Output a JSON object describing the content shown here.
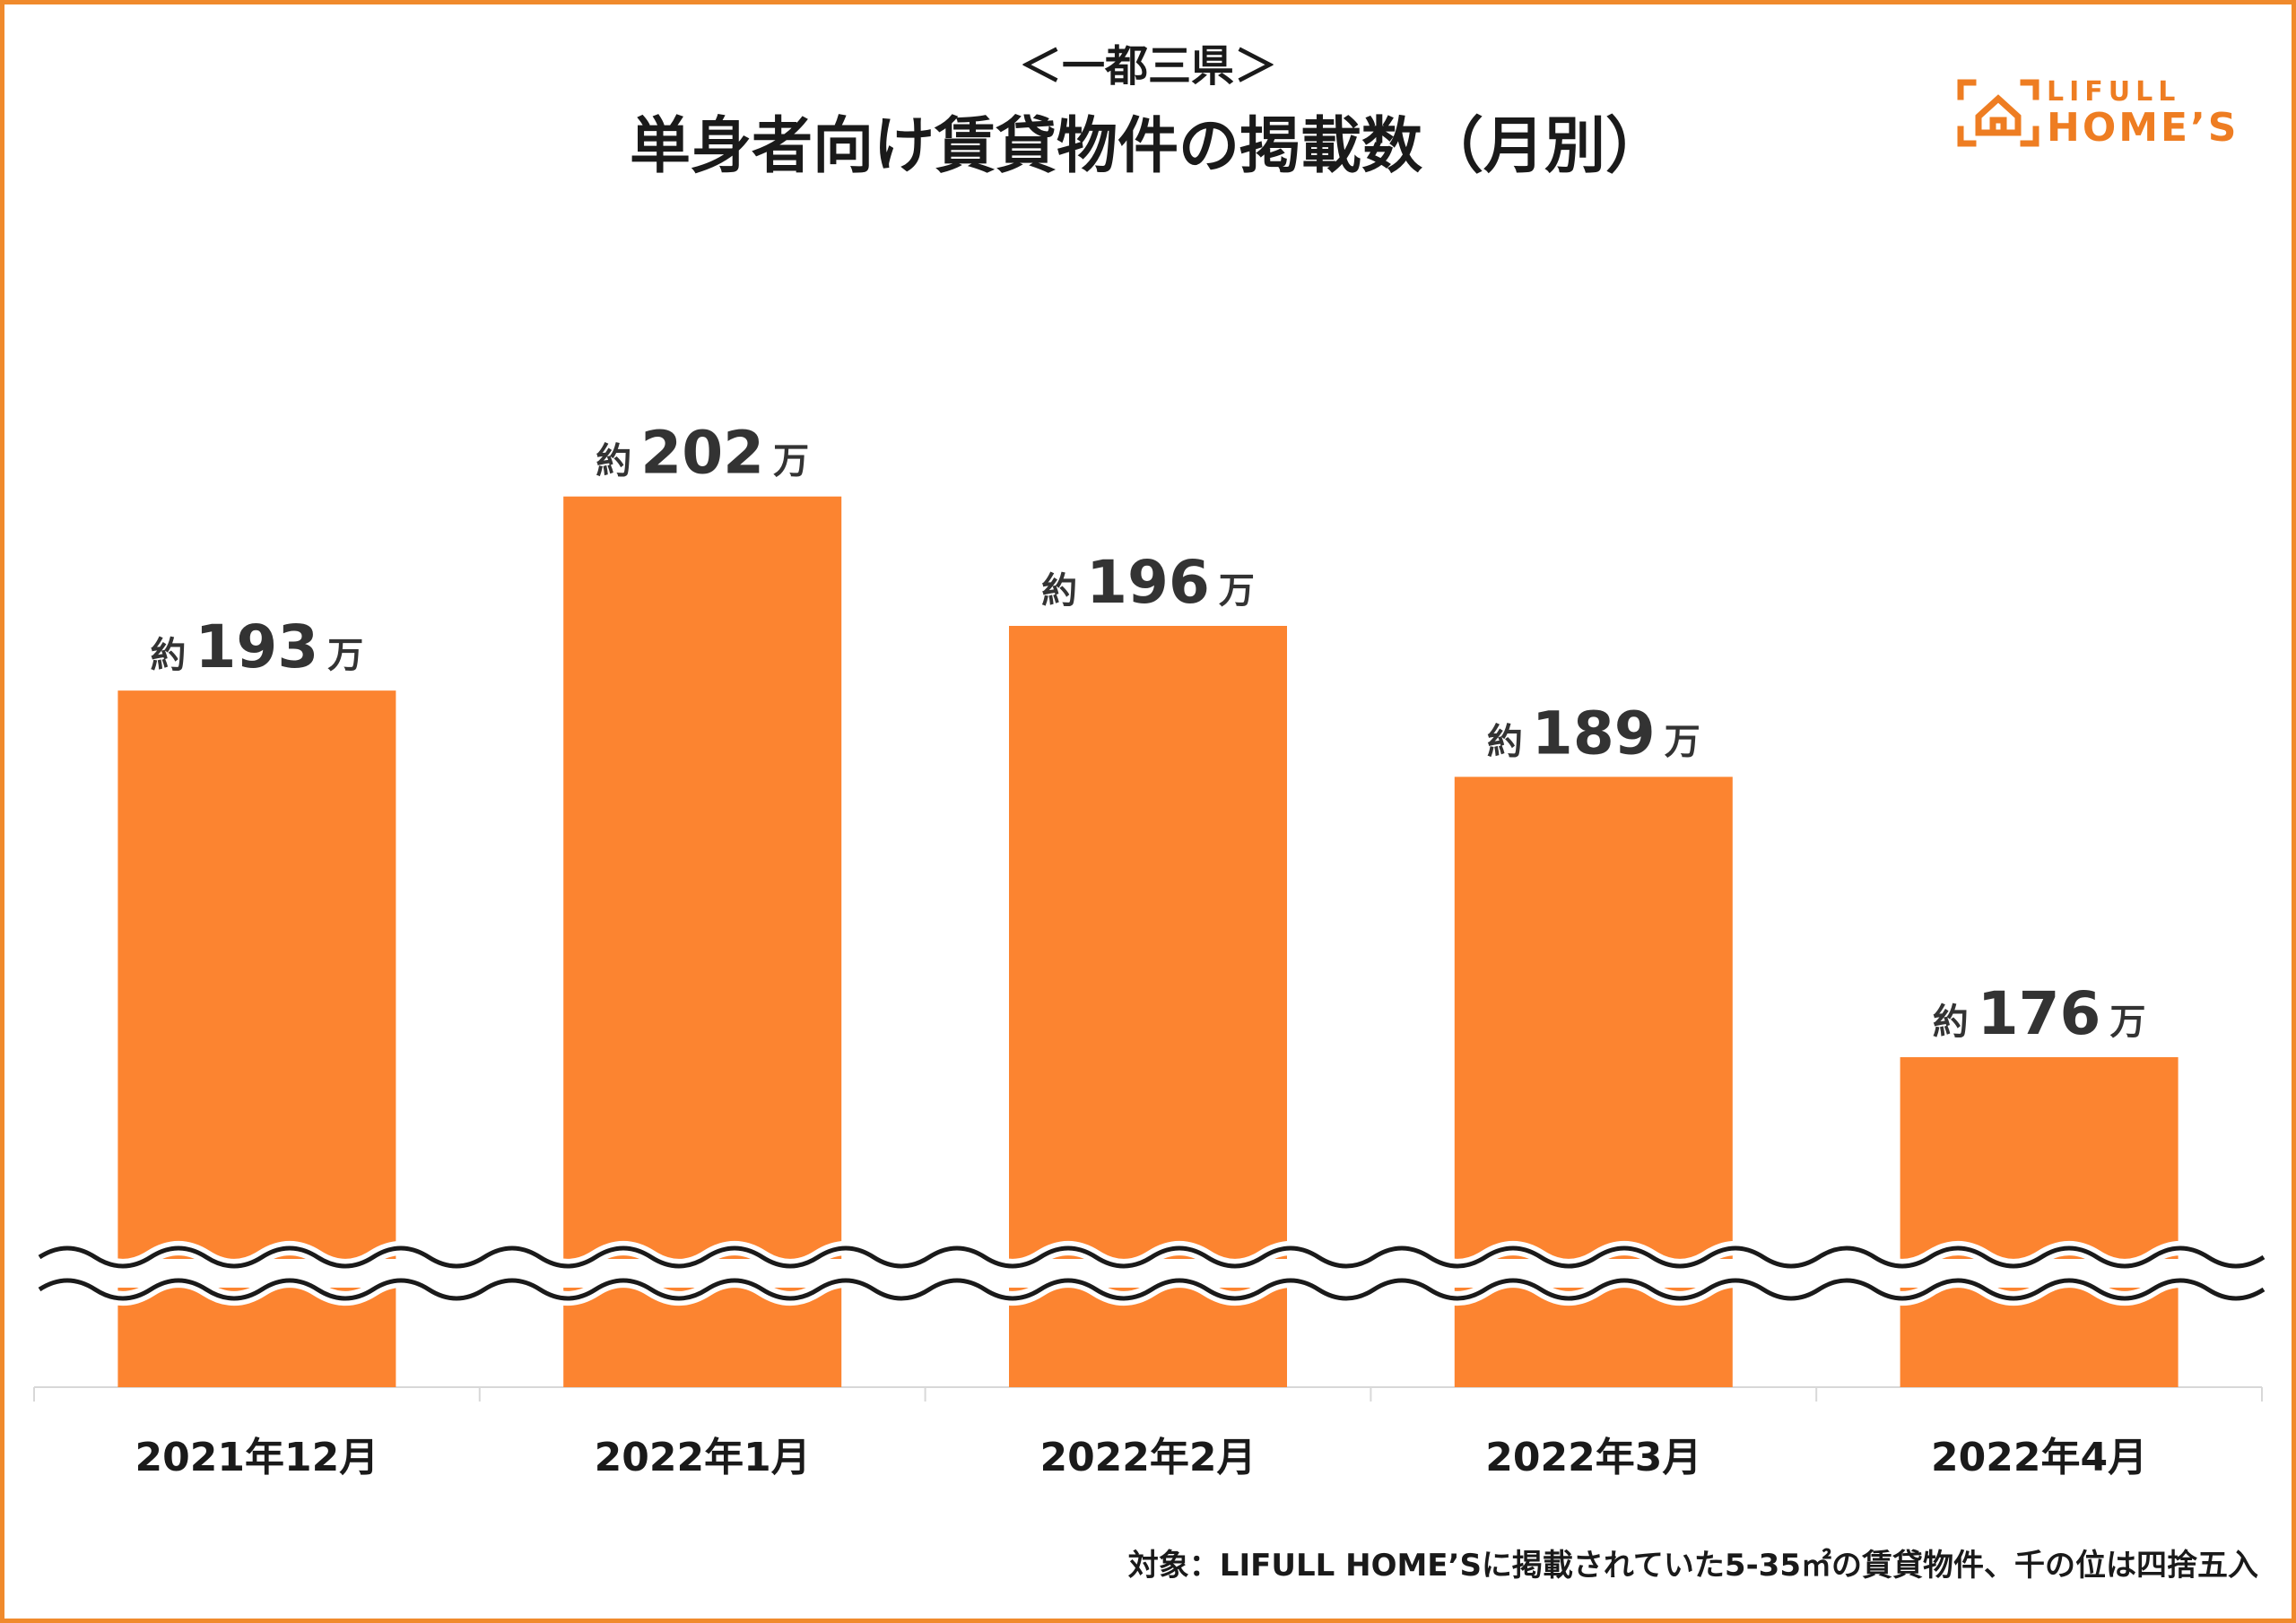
{
  "header": {
    "subtitle": "＜一都三県＞",
    "title": "単身者向け賃貸物件の掲載数（月別）"
  },
  "logo": {
    "top_text": "LIFULL",
    "bottom_text": "HOME’S"
  },
  "colors": {
    "bar": "#FC8430",
    "border": "#F08A2C",
    "text": "#1a1a1a",
    "label": "#333333",
    "axis": "#d8d8d8"
  },
  "chart_data": {
    "type": "bar",
    "title": "単身者向け賃貸物件の掲載数（月別）",
    "subtitle": "＜一都三県＞",
    "categories": [
      "2021年12月",
      "2022年1月",
      "2022年2月",
      "2022年3月",
      "2022年4月"
    ],
    "values": [
      193,
      202,
      196,
      189,
      176
    ],
    "value_unit": "万",
    "label_prefix": "約",
    "label_suffix": "万",
    "xlabel": "",
    "ylabel": "",
    "axis_break": true,
    "grid": false,
    "legend": "none"
  },
  "footnote": "対象：LIFULL HOME’Sに掲載されていた5-35㎡の賃貸物件、千の位は四捨五入"
}
